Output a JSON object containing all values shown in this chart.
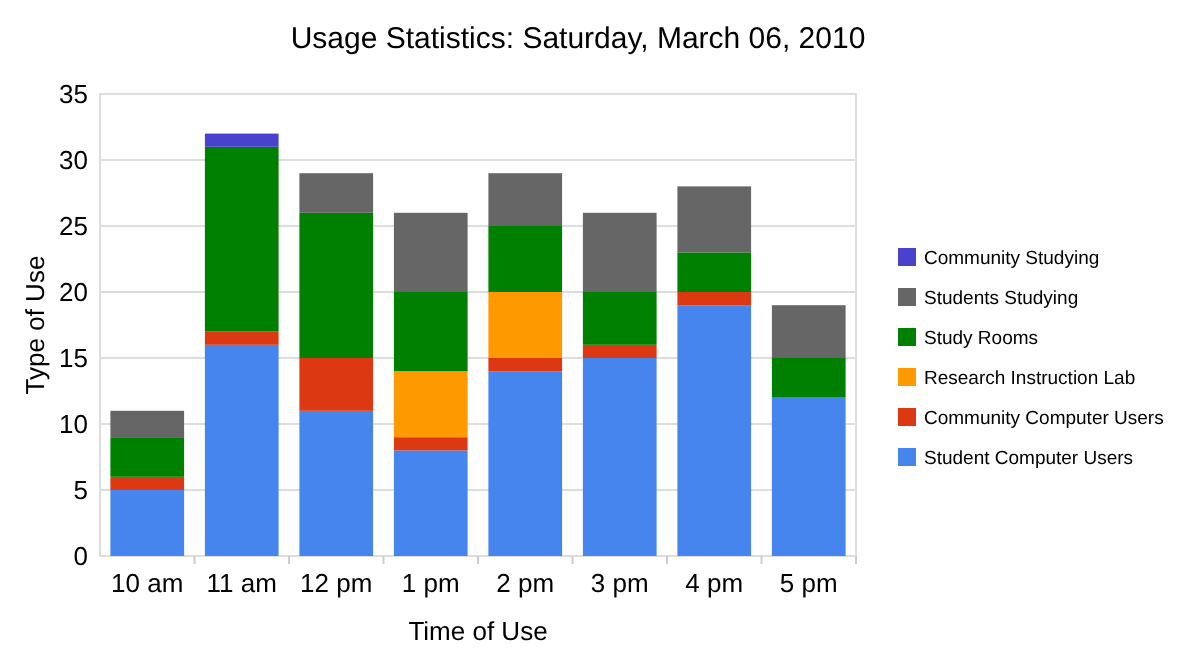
{
  "chart_data": {
    "type": "bar",
    "title": "Usage Statistics: Saturday, March 06, 2010",
    "xlabel": "Time of Use",
    "ylabel": "Type of Use",
    "categories": [
      "10 am",
      "11 am",
      "12 pm",
      "1 pm",
      "2 pm",
      "3 pm",
      "4 pm",
      "5 pm"
    ],
    "stacked": true,
    "ylim": [
      0,
      35
    ],
    "yticks": [
      0,
      5,
      10,
      15,
      20,
      25,
      30,
      35
    ],
    "grid": "y",
    "legend": "right",
    "series": [
      {
        "name": "Student Computer Users",
        "color": "#4684ee",
        "values": [
          5,
          16,
          11,
          8,
          14,
          15,
          19,
          12
        ]
      },
      {
        "name": "Community Computer Users",
        "color": "#dc3912",
        "values": [
          1,
          1,
          4,
          1,
          1,
          1,
          1,
          0
        ]
      },
      {
        "name": "Research Instruction Lab",
        "color": "#ff9900",
        "values": [
          0,
          0,
          0,
          5,
          5,
          0,
          0,
          0
        ]
      },
      {
        "name": "Study Rooms",
        "color": "#008000",
        "values": [
          3,
          14,
          11,
          6,
          5,
          4,
          3,
          3
        ]
      },
      {
        "name": "Students Studying",
        "color": "#666666",
        "values": [
          2,
          0,
          3,
          6,
          4,
          6,
          5,
          4
        ]
      },
      {
        "name": "Community Studying",
        "color": "#4942cc",
        "values": [
          0,
          1,
          0,
          0,
          0,
          0,
          0,
          0
        ]
      }
    ]
  }
}
